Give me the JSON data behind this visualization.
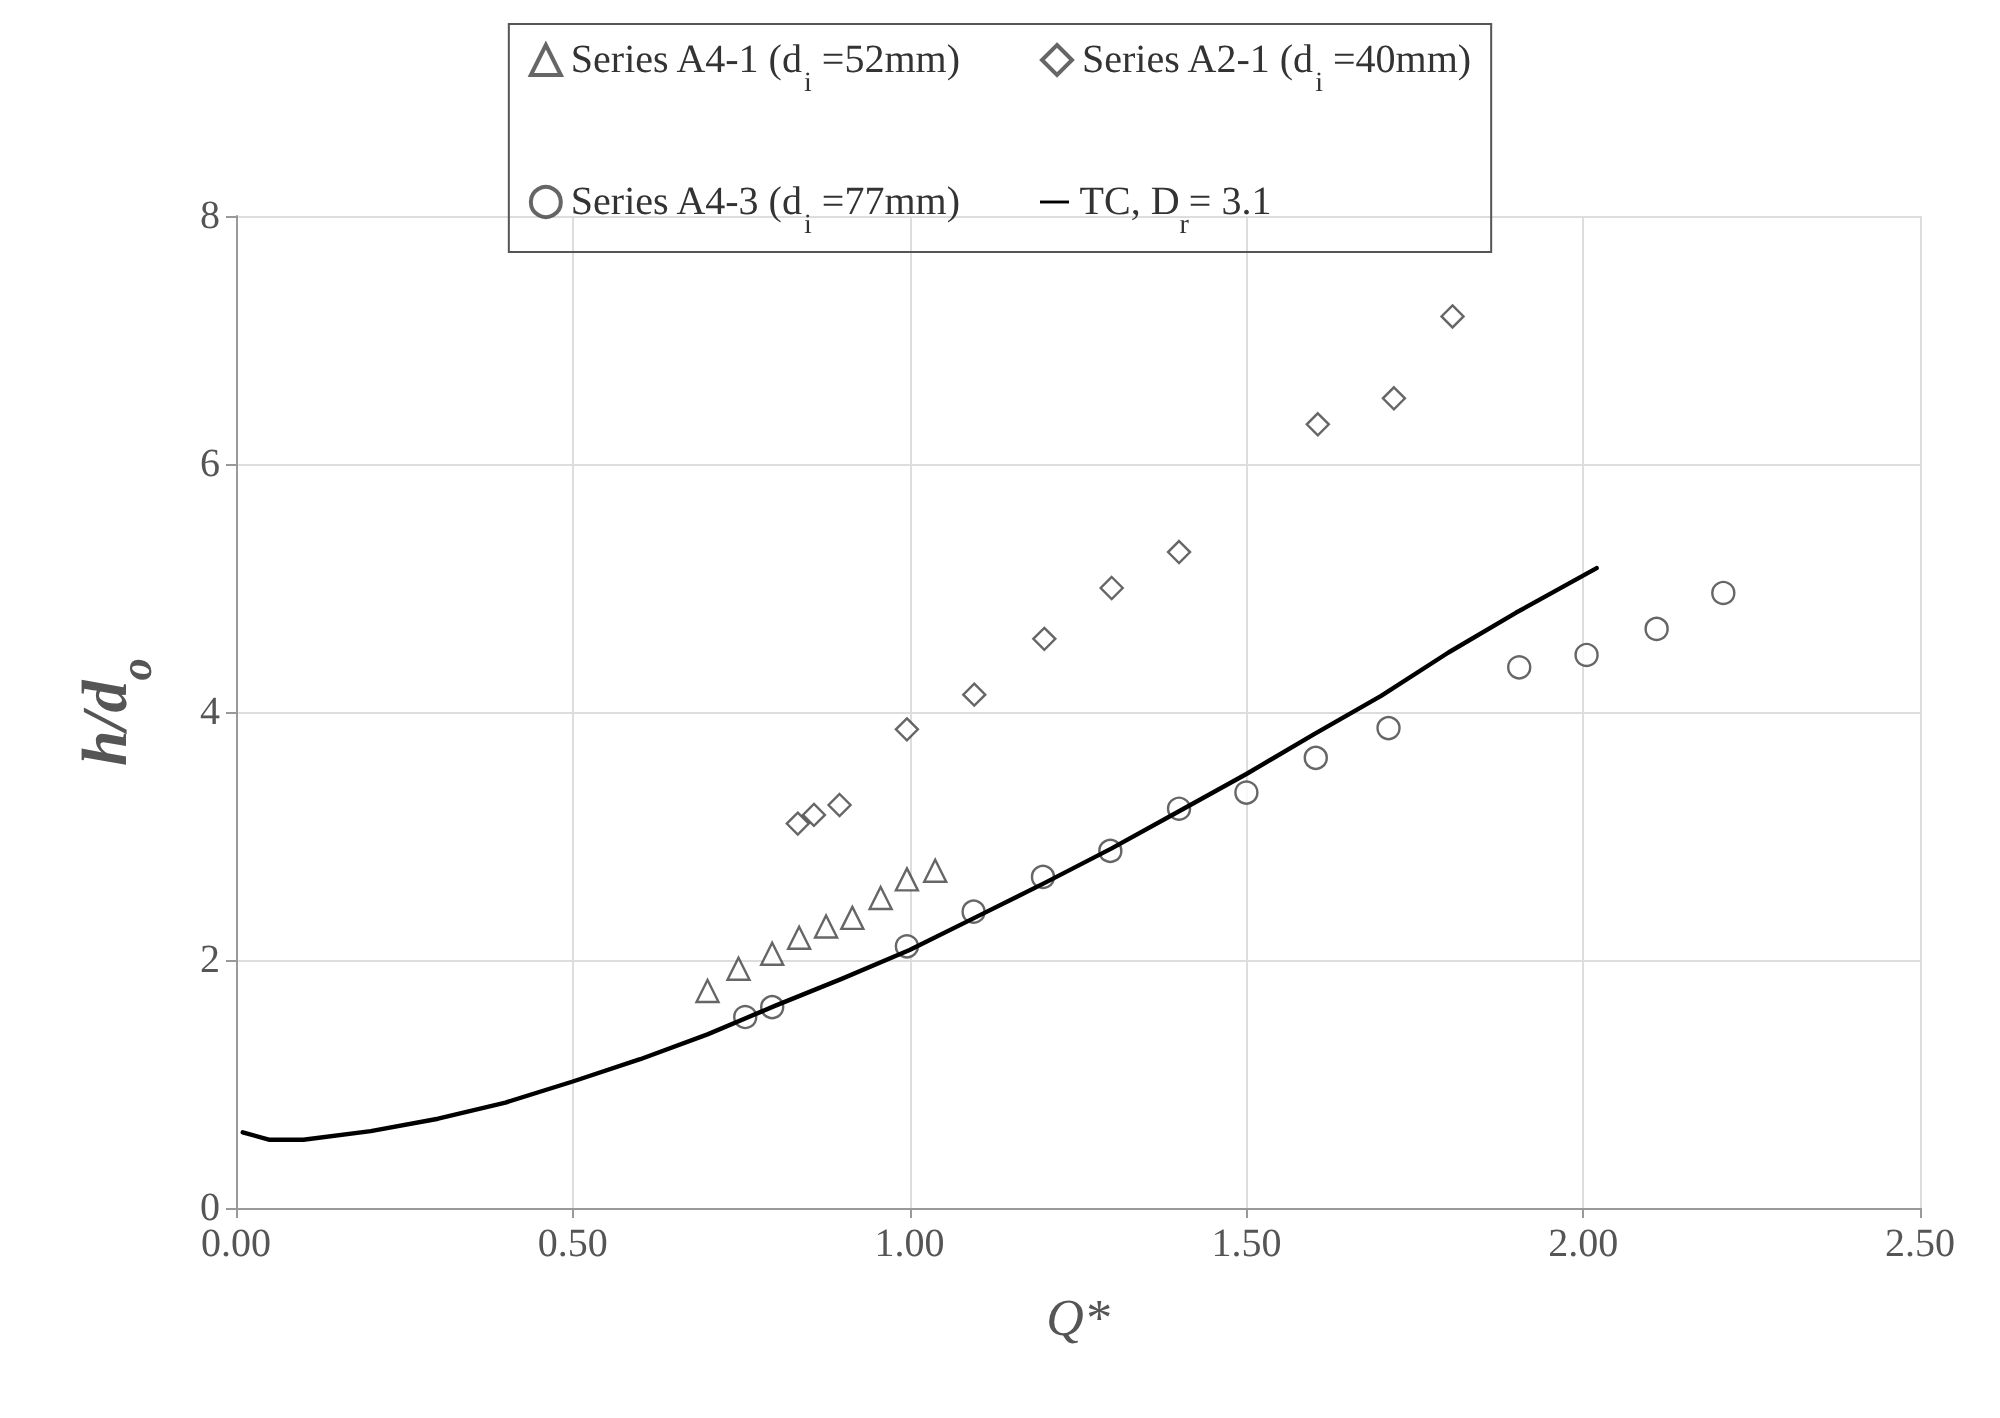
{
  "chart_data": {
    "type": "scatter",
    "xlabel": "Q*",
    "ylabel": "h/d$_{o}$",
    "xlim": [
      0,
      2.5
    ],
    "xticks": [
      {
        "value": 0,
        "label": "0.00"
      },
      {
        "value": 0.5,
        "label": "0.50"
      },
      {
        "value": 1,
        "label": "1.00"
      },
      {
        "value": 1.5,
        "label": "1.50"
      },
      {
        "value": 2,
        "label": "2.00"
      },
      {
        "value": 2.5,
        "label": "2.50"
      }
    ],
    "ylim": [
      0,
      8
    ],
    "yticks": [
      0,
      2,
      4,
      6,
      8
    ],
    "grid": true,
    "legend": "top",
    "series": [
      {
        "name": "Series A4-1 (d$_{i}$ =52mm)",
        "marker": "triangle",
        "color": "#404040",
        "x": [
          0.7,
          0.746,
          0.796,
          0.836,
          0.876,
          0.915,
          0.957,
          0.996,
          1.038
        ],
        "values": [
          1.75,
          1.93,
          2.05,
          2.18,
          2.27,
          2.34,
          2.5,
          2.65,
          2.72
        ]
      },
      {
        "name": "Series A2-1 (d$_{i}$ =40mm)",
        "marker": "diamond",
        "color": "#404040",
        "x": [
          0.834,
          0.858,
          0.896,
          0.996,
          1.096,
          1.2,
          1.3,
          1.4,
          1.606,
          1.719,
          1.806
        ],
        "values": [
          3.1,
          3.17,
          3.25,
          3.86,
          4.14,
          4.59,
          5.0,
          5.29,
          6.32,
          6.53,
          7.19
        ]
      },
      {
        "name": "Series A4-3 (d$_{i}$ =77mm)",
        "marker": "circle",
        "color": "#404040",
        "x": [
          0.756,
          0.796,
          0.996,
          1.095,
          1.198,
          1.298,
          1.4,
          1.5,
          1.603,
          1.711,
          1.905,
          2.005,
          2.109,
          2.208
        ],
        "values": [
          1.54,
          1.62,
          2.11,
          2.39,
          2.67,
          2.88,
          3.22,
          3.35,
          3.63,
          3.87,
          4.36,
          4.46,
          4.67,
          4.96
        ]
      },
      {
        "name": "TC, D$_{r}$= 3.1",
        "type": "line",
        "marker": "none",
        "line_style": "solid",
        "color": "#000000",
        "x": [
          0.01,
          0.05,
          0.1,
          0.2,
          0.3,
          0.4,
          0.5,
          0.6,
          0.7,
          0.8,
          0.9,
          1.0,
          1.1,
          1.2,
          1.3,
          1.4,
          1.5,
          1.6,
          1.7,
          1.8,
          1.9,
          2.02
        ],
        "values": [
          0.61,
          0.55,
          0.55,
          0.62,
          0.72,
          0.85,
          1.02,
          1.2,
          1.4,
          1.63,
          1.85,
          2.08,
          2.35,
          2.62,
          2.9,
          3.2,
          3.5,
          3.82,
          4.13,
          4.48,
          4.8,
          5.16
        ]
      }
    ]
  }
}
